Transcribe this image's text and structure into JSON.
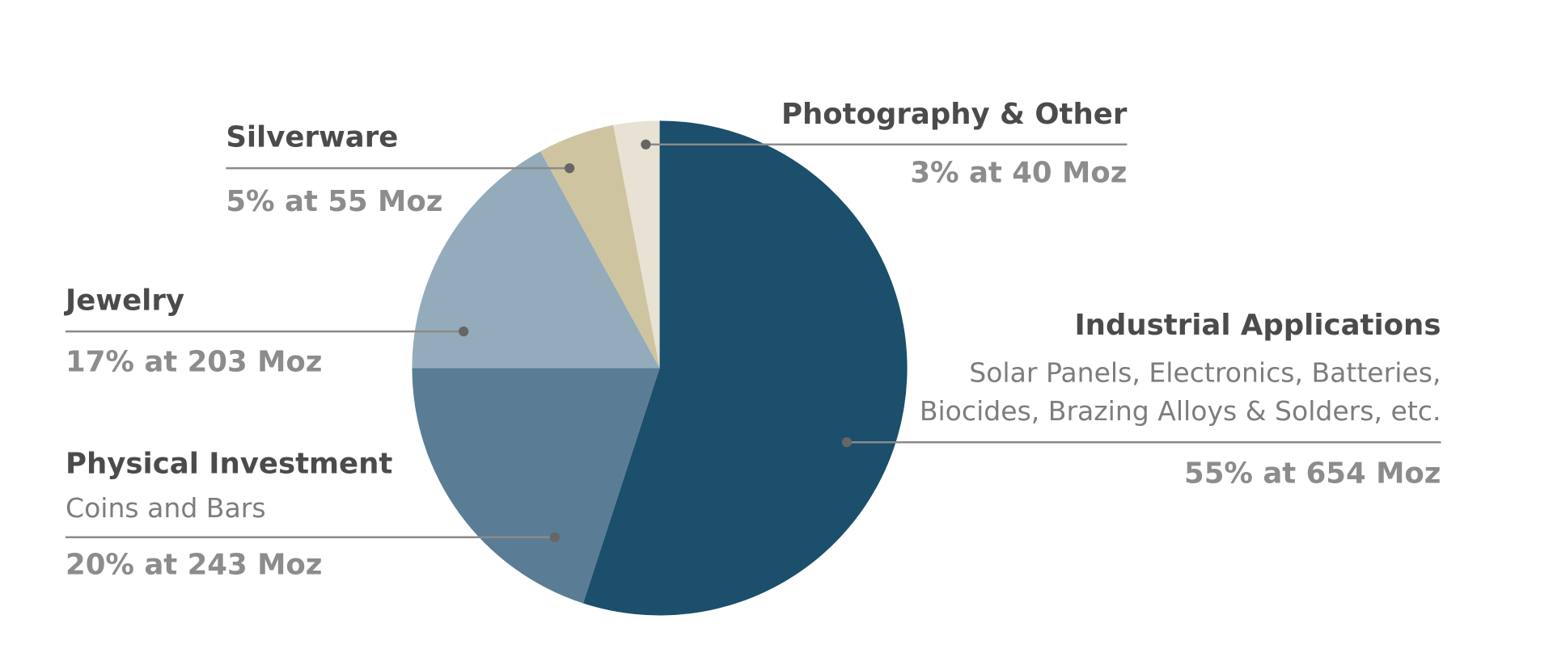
{
  "chart_data": {
    "type": "pie",
    "categories": [
      "Industrial Applications",
      "Physical Investment",
      "Jewelry",
      "Silverware",
      "Photography & Other"
    ],
    "descriptions": [
      [
        "Solar Panels, Electronics, Batteries,",
        "Biocides, Brazing Alloys & Solders, etc."
      ],
      [
        "Coins and Bars"
      ],
      [],
      [],
      []
    ],
    "values": [
      55,
      20,
      17,
      5,
      3
    ],
    "value_labels": [
      "55% at 654 Moz",
      "20% at 243 Moz",
      "17% at 203 Moz",
      "5% at 55 Moz",
      "3% at 40 Moz"
    ],
    "colors": [
      "#1b4f6b",
      "#5a7d95",
      "#94abbb",
      "#cfc4a0",
      "#e7e2d4"
    ]
  }
}
